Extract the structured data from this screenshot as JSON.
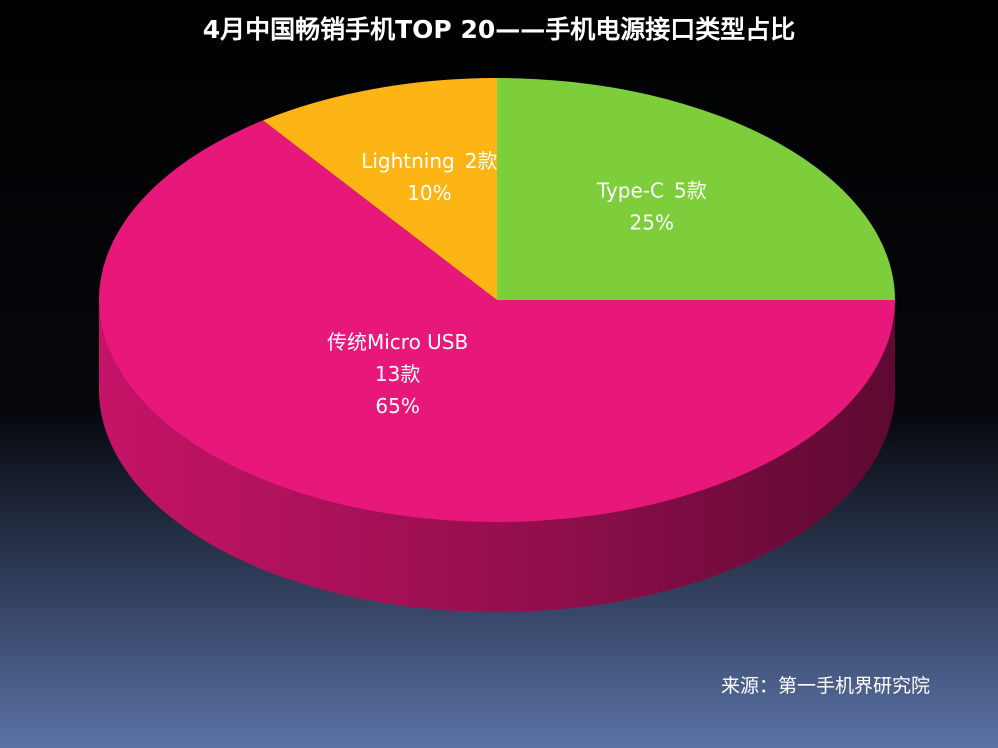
{
  "chart_data": {
    "type": "pie",
    "title": "4月中国畅销手机TOP 20——手机电源接口类型占比",
    "categories": [
      "Type-C",
      "传统Micro USB",
      "Lightning"
    ],
    "values": [
      25,
      65,
      10
    ],
    "value_labels": [
      "25%",
      "65%",
      "10%"
    ],
    "counts": [
      5,
      13,
      2
    ],
    "count_labels": [
      "5款",
      "13款",
      "2款"
    ],
    "colors": [
      "#7dce3a",
      "#e8177a",
      "#fdb515"
    ],
    "source": "来源：第一手机界研究院"
  }
}
